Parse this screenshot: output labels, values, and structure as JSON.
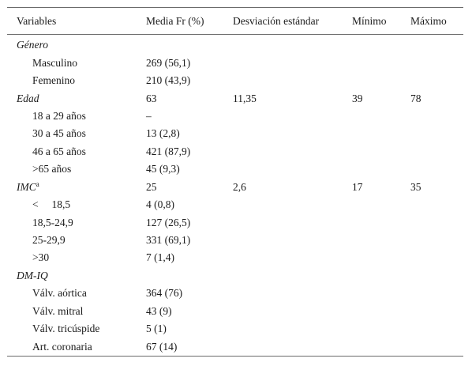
{
  "headers": [
    "Variables",
    "Media Fr (%)",
    "Desviación estándar",
    "Mínimo",
    "Máximo"
  ],
  "rows": [
    {
      "label": "Género",
      "category": true,
      "sup": "",
      "media": "",
      "sd": "",
      "min": "",
      "max": ""
    },
    {
      "label": "Masculino",
      "category": false,
      "sup": "",
      "media": "269 (56,1)",
      "sd": "",
      "min": "",
      "max": ""
    },
    {
      "label": "Femenino",
      "category": false,
      "sup": "",
      "media": "210 (43,9)",
      "sd": "",
      "min": "",
      "max": ""
    },
    {
      "label": "Edad",
      "category": true,
      "sup": "",
      "media": "63",
      "sd": "11,35",
      "min": "39",
      "max": "78"
    },
    {
      "label": "18 a 29 años",
      "category": false,
      "sup": "",
      "media": "–",
      "sd": "",
      "min": "",
      "max": ""
    },
    {
      "label": "30 a 45 años",
      "category": false,
      "sup": "",
      "media": "13 (2,8)",
      "sd": "",
      "min": "",
      "max": ""
    },
    {
      "label": "46 a 65 años",
      "category": false,
      "sup": "",
      "media": "421 (87,9)",
      "sd": "",
      "min": "",
      "max": ""
    },
    {
      "label": ">65 años",
      "category": false,
      "sup": "",
      "media": "45 (9,3)",
      "sd": "",
      "min": "",
      "max": ""
    },
    {
      "label": "IMC",
      "category": true,
      "sup": "a",
      "media": "25",
      "sd": "2,6",
      "min": "17",
      "max": "35"
    },
    {
      "label": "<     18,5",
      "category": false,
      "sup": "",
      "media": "4 (0,8)",
      "sd": "",
      "min": "",
      "max": ""
    },
    {
      "label": "18,5-24,9",
      "category": false,
      "sup": "",
      "media": "127 (26,5)",
      "sd": "",
      "min": "",
      "max": ""
    },
    {
      "label": "25-29,9",
      "category": false,
      "sup": "",
      "media": "331 (69,1)",
      "sd": "",
      "min": "",
      "max": ""
    },
    {
      "label": ">30",
      "category": false,
      "sup": "",
      "media": "7 (1,4)",
      "sd": "",
      "min": "",
      "max": ""
    },
    {
      "label": "DM-IQ",
      "category": true,
      "sup": "",
      "media": "",
      "sd": "",
      "min": "",
      "max": ""
    },
    {
      "label": "Válv. aórtica",
      "category": false,
      "sup": "",
      "media": "364 (76)",
      "sd": "",
      "min": "",
      "max": ""
    },
    {
      "label": "Válv. mitral",
      "category": false,
      "sup": "",
      "media": "43 (9)",
      "sd": "",
      "min": "",
      "max": ""
    },
    {
      "label": "Válv. tricúspide",
      "category": false,
      "sup": "",
      "media": "5 (1)",
      "sd": "",
      "min": "",
      "max": ""
    },
    {
      "label": "Art. coronaria",
      "category": false,
      "sup": "",
      "media": "67 (14)",
      "sd": "",
      "min": "",
      "max": ""
    }
  ]
}
